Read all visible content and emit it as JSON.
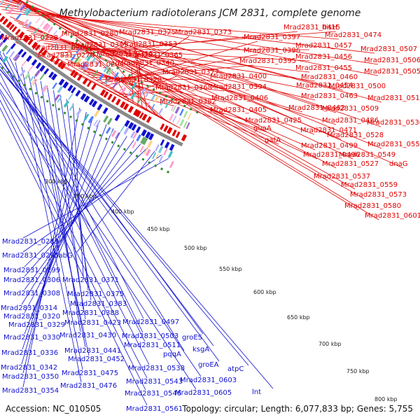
{
  "title": "Methylobacterium radiotolerans JCM 2831, complete genome",
  "footer": {
    "accession": "Accession: NC_010505",
    "summary": "Topology: circular; Length: 6,077,833 bp; Genes: 5,755"
  },
  "colors": {
    "forward": "#e00000",
    "reverse": "#1010d0",
    "backbone": "#8a8a8a",
    "dashes": "#2e8b2e"
  },
  "ticks": [
    "300 kbp",
    "350 kbp",
    "400 kbp",
    "450 kbp",
    "500 kbp",
    "550 kbp",
    "600 kbp",
    "650 kbp",
    "700 kbp",
    "750 kbp",
    "800 kbp"
  ],
  "forward_labels": [
    "Mrad2831_0228",
    "Mrad2831_0260",
    "Mrad2831_0270",
    "Mrad2831_0280",
    "Mrad2831_0305",
    "Mrad2831_0315",
    "Mrad2831_0294",
    "Mrad2831_0325",
    "Mrad2831_0353",
    "Mrad2831_0365",
    "Mrad2831_0340",
    "Mrad2831_0328",
    "Mrad2831_0377",
    "Mrad2831_0368",
    "Mrad2831_0382",
    "Mrad2831_0373",
    "Mrad2831_0397",
    "Mrad2831_0396",
    "Mrad2831_0395",
    "Mrad2831_0400",
    "Mrad2831_0394",
    "Mrad2831_0406",
    "Mrad2831_0405",
    "Mrad2831_0425",
    "guaA",
    "gatA",
    "Mrad2831_0415",
    "hisH",
    "Mrad2831_0457",
    "Mrad2831_0456",
    "Mrad2831_0455",
    "Mrad2831_0460",
    "Mrad2831_0454",
    "Mrad2831_0463",
    "Mrad2831_0462",
    "Mrad2831_0486",
    "Mrad2831_0471",
    "Mrad2831_0499",
    "Mrad2831_0496",
    "Mrad2831_0474",
    "Mrad2831_0507",
    "Mrad2831_0506",
    "Mrad2831_0505",
    "Mrad2831_0500",
    "Mrad2831_0510",
    "Mrad2831_0509",
    "Mrad2831_0536",
    "Mrad2831_0528",
    "Mrad2831_0551",
    "Mrad2831_0549",
    "Mrad2831_0527",
    "dnaG",
    "Mrad2831_0537",
    "Mrad2831_0559",
    "Mrad2831_0573",
    "Mrad2831_0580",
    "Mrad2831_0601"
  ],
  "reverse_labels": [
    "Mrad2831_0289",
    "Mrad2831_0295",
    "fabG",
    "Mrad2831_0299",
    "Mrad2831_0306",
    "Mrad2831_0308",
    "Mrad2831_0314",
    "Mrad2831_0320",
    "Mrad2831_0329",
    "Mrad2831_0330",
    "Mrad2831_0336",
    "Mrad2831_0342",
    "Mrad2831_0350",
    "Mrad2831_0354",
    "Mrad2831_0371",
    "Mrad2831_0375",
    "Mrad2831_0383",
    "Mrad2831_0388",
    "Mrad2831_0423",
    "Mrad2831_0430",
    "Mrad2831_0441",
    "Mrad2831_0452",
    "Mrad2831_0475",
    "Mrad2831_0476",
    "Mrad2831_0497",
    "Mrad2831_0503",
    "Mrad2831_0511",
    "pqqA",
    "groES",
    "Mrad2831_0538",
    "ksgA",
    "groEA",
    "Mrad2831_0543",
    "Mrad2831_0546",
    "Mrad2831_0561",
    "Mrad2831_0603",
    "Mrad2831_0605",
    "atpC",
    "lnt"
  ]
}
